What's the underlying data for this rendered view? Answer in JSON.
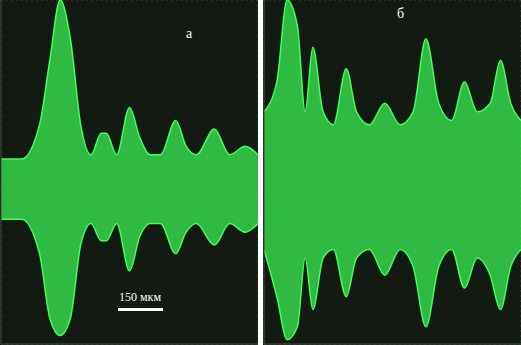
{
  "chart_data": [
    {
      "type": "area",
      "title": "а",
      "annotations": [
        "150 мкм"
      ],
      "color": "#3dff5a",
      "grid": true,
      "tick_labels": false,
      "xlim": [
        0,
        10
      ],
      "xticks": [
        0,
        2,
        4,
        6,
        8,
        10
      ],
      "ylim": [
        -3.6,
        4.4
      ],
      "yticks": [
        -2,
        0,
        2,
        4
      ],
      "x": [
        0,
        0.8,
        1.5,
        1.9,
        2.3,
        2.7,
        3.1,
        3.5,
        3.9,
        4.1,
        4.5,
        5.0,
        5.4,
        5.8,
        6.2,
        6.8,
        7.2,
        7.6,
        8.3,
        8.9,
        9.5,
        10
      ],
      "upper": [
        0.7,
        0.7,
        1.5,
        3.0,
        4.4,
        3.5,
        1.5,
        0.8,
        1.3,
        1.3,
        0.8,
        1.9,
        1.2,
        0.8,
        0.8,
        1.6,
        1.0,
        0.8,
        1.4,
        0.8,
        1.0,
        0.8
      ],
      "lower": [
        -0.7,
        -0.7,
        -1.5,
        -3.0,
        -3.4,
        -3.0,
        -1.3,
        -0.8,
        -1.2,
        -1.2,
        -0.8,
        -1.9,
        -1.1,
        -0.8,
        -0.8,
        -1.5,
        -1.0,
        -0.8,
        -1.3,
        -0.8,
        -1.0,
        -0.8
      ]
    },
    {
      "type": "area",
      "title": "б",
      "color": "#3dff5a",
      "grid": true,
      "tick_labels": false,
      "xlim": [
        0,
        10
      ],
      "xticks": [
        0,
        2,
        4,
        6,
        8,
        10
      ],
      "ylim": [
        -3.6,
        4.4
      ],
      "yticks": [
        -2,
        0,
        2,
        4
      ],
      "x": [
        0,
        0.5,
        0.9,
        1.3,
        1.6,
        1.9,
        2.3,
        2.7,
        3.2,
        3.6,
        4.1,
        4.7,
        5.3,
        5.8,
        6.3,
        6.8,
        7.3,
        7.8,
        8.3,
        8.8,
        9.2,
        9.6,
        10
      ],
      "upper": [
        1.8,
        2.5,
        4.4,
        3.8,
        1.8,
        3.3,
        1.8,
        1.5,
        2.8,
        1.8,
        1.5,
        2.0,
        1.5,
        1.8,
        3.5,
        2.0,
        1.6,
        2.5,
        1.8,
        2.0,
        3.0,
        2.0,
        1.6
      ],
      "lower": [
        -1.4,
        -2.5,
        -3.5,
        -3.2,
        -1.6,
        -2.8,
        -1.6,
        -1.4,
        -2.5,
        -1.6,
        -1.4,
        -2.0,
        -1.4,
        -1.8,
        -3.2,
        -1.8,
        -1.4,
        -2.3,
        -1.6,
        -2.0,
        -2.8,
        -1.8,
        -1.4
      ]
    }
  ]
}
